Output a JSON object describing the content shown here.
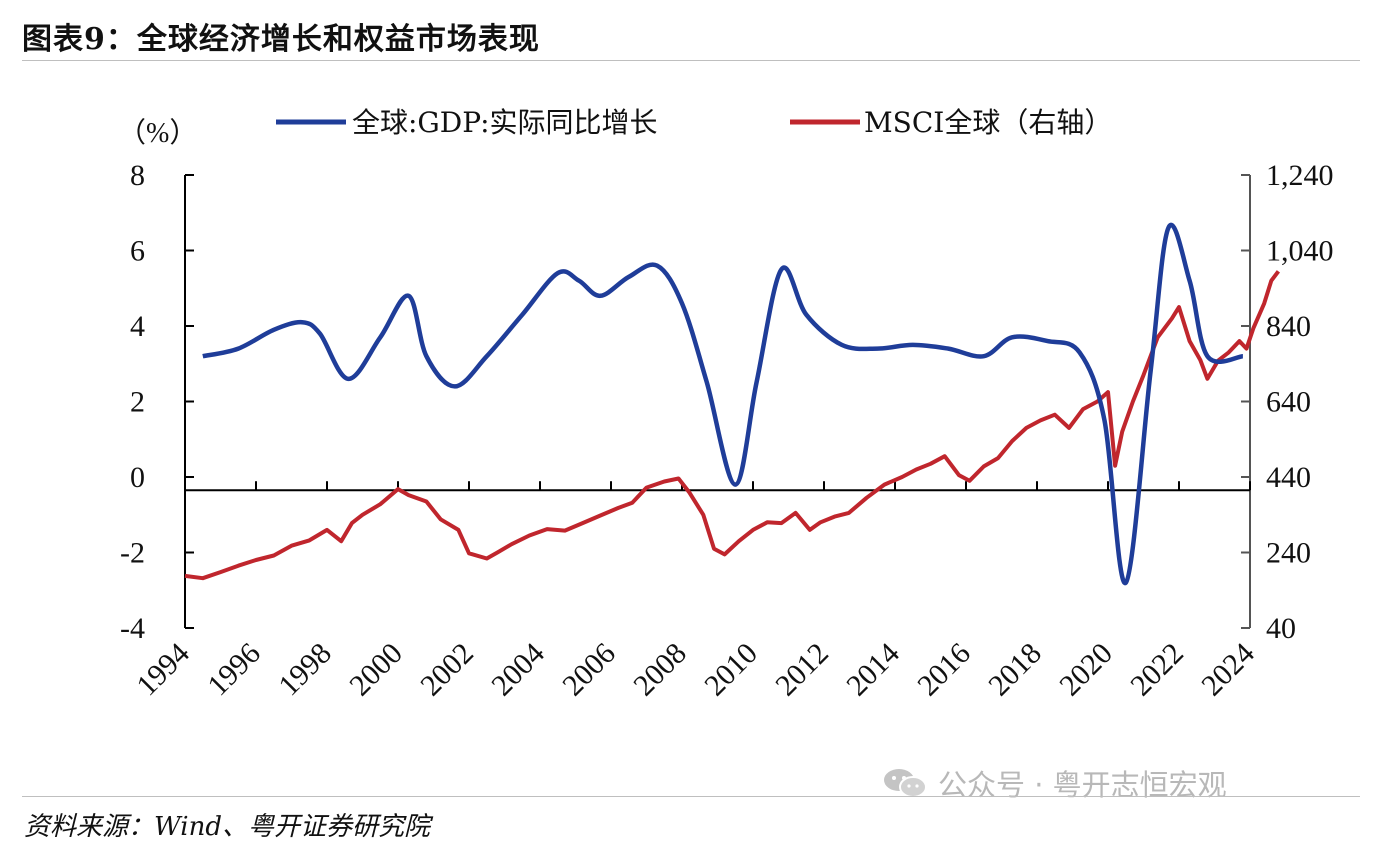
{
  "header": {
    "title": "图表9：全球经济增长和权益市场表现"
  },
  "footer": {
    "source": "资料来源：Wind、粤开证券研究院",
    "watermark": "公众号 · 粤开志恒宏观"
  },
  "chart_data": {
    "type": "line",
    "title": "",
    "left_axis_unit": "（%）",
    "ylim_left": [
      -4,
      8
    ],
    "yticks_left": [
      "8",
      "6",
      "4",
      "2",
      "0",
      "-2",
      "-4"
    ],
    "ylim_right": [
      40,
      1240
    ],
    "yticks_right": [
      "1,240",
      "1,040",
      "840",
      "640",
      "440",
      "240",
      "40"
    ],
    "xlim": [
      1994,
      2024
    ],
    "xticks": [
      "1994",
      "1996",
      "1998",
      "2000",
      "2002",
      "2004",
      "2006",
      "2008",
      "2010",
      "2012",
      "2014",
      "2016",
      "2018",
      "2020",
      "2022",
      "2024"
    ],
    "legend_position": "top",
    "colors": {
      "gdp": "#1f3d99",
      "msci": "#c0262d"
    },
    "series": [
      {
        "name": "全球:GDP:实际同比增长",
        "axis": "left",
        "x": [
          1994.5,
          1995.5,
          1996.5,
          1997.3,
          1997.8,
          1998.6,
          1999.5,
          2000.3,
          2000.8,
          2001.6,
          2002.5,
          2003.5,
          2004.5,
          2005.1,
          2005.7,
          2006.5,
          2007.3,
          2008.0,
          2008.7,
          2009.5,
          2010.1,
          2010.8,
          2011.5,
          2012.5,
          2013.5,
          2014.5,
          2015.5,
          2016.5,
          2017.3,
          2018.3,
          2019.2,
          2019.9,
          2020.5,
          2021.2,
          2021.7,
          2022.3,
          2022.8,
          2023.8
        ],
        "values": [
          3.2,
          3.4,
          3.9,
          4.1,
          3.8,
          2.6,
          3.7,
          4.8,
          3.2,
          2.4,
          3.2,
          4.3,
          5.4,
          5.2,
          4.8,
          5.3,
          5.6,
          4.6,
          2.5,
          -0.2,
          2.5,
          5.5,
          4.3,
          3.5,
          3.4,
          3.5,
          3.4,
          3.2,
          3.7,
          3.6,
          3.3,
          1.5,
          -2.8,
          2.8,
          6.6,
          5.2,
          3.2,
          3.2
        ]
      },
      {
        "name": "MSCI全球（右轴）",
        "axis": "right",
        "x": [
          1994.0,
          1994.5,
          1995.0,
          1995.5,
          1996.0,
          1996.5,
          1997.0,
          1997.5,
          1998.0,
          1998.4,
          1998.7,
          1999.0,
          1999.5,
          2000.0,
          2000.3,
          2000.8,
          2001.2,
          2001.7,
          2002.0,
          2002.5,
          2002.8,
          2003.2,
          2003.7,
          2004.2,
          2004.7,
          2005.2,
          2005.7,
          2006.2,
          2006.6,
          2007.0,
          2007.5,
          2007.9,
          2008.2,
          2008.6,
          2008.9,
          2009.2,
          2009.6,
          2010.0,
          2010.4,
          2010.8,
          2011.2,
          2011.6,
          2011.9,
          2012.3,
          2012.7,
          2013.2,
          2013.7,
          2014.2,
          2014.6,
          2015.0,
          2015.4,
          2015.8,
          2016.1,
          2016.5,
          2016.9,
          2017.3,
          2017.7,
          2018.1,
          2018.5,
          2018.9,
          2019.3,
          2019.7,
          2020.0,
          2020.2,
          2020.4,
          2020.7,
          2021.0,
          2021.4,
          2021.8,
          2022.0,
          2022.3,
          2022.6,
          2022.8,
          2023.1,
          2023.4,
          2023.7,
          2023.9,
          2024.1,
          2024.4,
          2024.6,
          2024.8
        ],
        "values": [
          178,
          172,
          188,
          205,
          220,
          232,
          258,
          272,
          300,
          270,
          318,
          340,
          368,
          408,
          392,
          375,
          328,
          300,
          238,
          224,
          240,
          262,
          285,
          302,
          298,
          318,
          338,
          358,
          372,
          412,
          428,
          436,
          400,
          340,
          250,
          235,
          270,
          300,
          320,
          318,
          345,
          300,
          320,
          335,
          345,
          385,
          420,
          440,
          460,
          475,
          495,
          445,
          430,
          468,
          490,
          535,
          570,
          590,
          605,
          570,
          620,
          640,
          665,
          470,
          560,
          640,
          710,
          810,
          860,
          890,
          800,
          750,
          700,
          748,
          770,
          800,
          780,
          835,
          900,
          960,
          985
        ]
      }
    ]
  }
}
